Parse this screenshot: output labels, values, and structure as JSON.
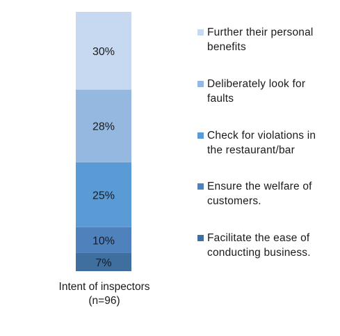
{
  "chart_data": {
    "type": "bar",
    "stacked": true,
    "categories": [
      "Intent of inspectors\n(n=96)"
    ],
    "category_label_lines": [
      "Intent of inspectors",
      "(n=96)"
    ],
    "series": [
      {
        "name": "Facilitate the ease of conducting business.",
        "values": [
          7
        ],
        "label": "7%",
        "color": "#3f6f9f"
      },
      {
        "name": "Ensure the welfare of customers.",
        "values": [
          10
        ],
        "label": "10%",
        "color": "#4f81bd"
      },
      {
        "name": "Check for violations in the restaurant/bar",
        "values": [
          25
        ],
        "label": "25%",
        "color": "#5b9bd5"
      },
      {
        "name": "Deliberately look for faults",
        "values": [
          28
        ],
        "label": "28%",
        "color": "#95b8e1"
      },
      {
        "name": "Further their personal benefits",
        "values": [
          30
        ],
        "label": "30%",
        "color": "#c6d9f0"
      }
    ],
    "legend_order": [
      "Further their personal benefits",
      "Deliberately look for faults",
      "Check for violations in the restaurant/bar",
      "Ensure the welfare of customers.",
      "Facilitate the ease of conducting business."
    ],
    "legend_lines": [
      [
        "Further their personal",
        "benefits"
      ],
      [
        "Deliberately look for",
        "faults"
      ],
      [
        "Check for violations in",
        "the restaurant/bar"
      ],
      [
        "Ensure the welfare of",
        "customers."
      ],
      [
        "Facilitate the ease of",
        "conducting business."
      ]
    ],
    "ylim": [
      0,
      100
    ],
    "legend_position": "right",
    "grid": false
  }
}
